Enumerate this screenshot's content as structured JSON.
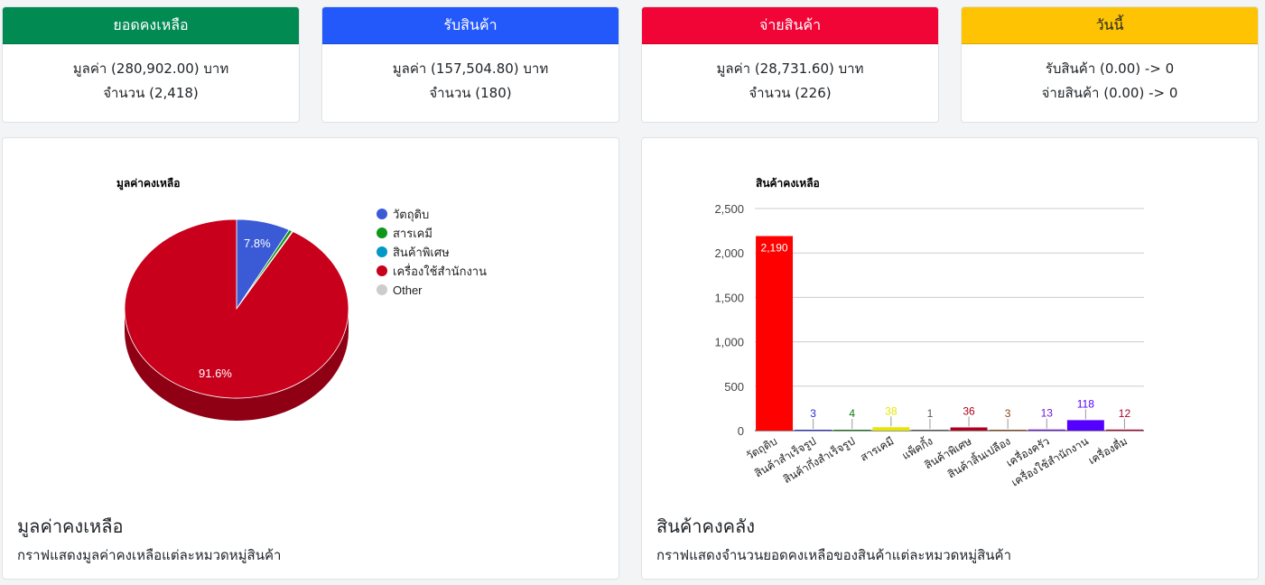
{
  "stats": [
    {
      "title": "ยอดคงเหลือ",
      "color": "#028a53",
      "title_color": "#ffffff",
      "line1": "มูลค่า (280,902.00) บาท",
      "line2": "จำนวน (2,418)"
    },
    {
      "title": "รับสินค้า",
      "color": "#2358fa",
      "title_color": "#ffffff",
      "line1": "มูลค่า (157,504.80) บาท",
      "line2": "จำนวน (180)"
    },
    {
      "title": "จ่ายสินค้า",
      "color": "#f10537",
      "title_color": "#ffffff",
      "line1": "มูลค่า (28,731.60) บาท",
      "line2": "จำนวน (226)"
    },
    {
      "title": "วันนี้",
      "color": "#fec403",
      "title_color": "#212529",
      "line1": "รับสินค้า (0.00) -> 0",
      "line2": "จ่ายสินค้า (0.00) -> 0"
    }
  ],
  "pie_panel": {
    "heading": "มูลค่าคงเหลือ",
    "description": "กราฟแสดงมูลค่าคงเหลือแต่ละหมวดหมู่สินค้า"
  },
  "bar_panel": {
    "heading": "สินค้าคงคลัง",
    "description": "กราฟแสดงจำนวนยอดคงเหลือของสินค้าแต่ละหมวดหมู่สินค้า"
  },
  "chart_data": [
    {
      "type": "pie",
      "title": "มูลค่าคงเหลือ",
      "legend_position": "right",
      "slices": [
        {
          "label": "วัตถุดิบ",
          "value": 7.8,
          "color": "#3b5bd6"
        },
        {
          "label": "สารเคมี",
          "value": 0.5,
          "color": "#109618"
        },
        {
          "label": "สินค้าพิเศษ",
          "value": 0.1,
          "color": "#0099c6"
        },
        {
          "label": "เครื่องใช้สำนักงาน",
          "value": 91.6,
          "color": "#c8001c"
        },
        {
          "label": "Other",
          "value": 0.0,
          "color": "#cccccc"
        }
      ],
      "data_labels": [
        "7.8%",
        "91.6%"
      ]
    },
    {
      "type": "bar",
      "title": "สินค้าคงเหลือ",
      "ylim": [
        0,
        2500
      ],
      "yticks": [
        "0",
        "500",
        "1,000",
        "1,500",
        "2,000",
        "2,500"
      ],
      "grid": true,
      "categories": [
        "วัตถุดิบ",
        "สินค้าสำเร็จรูป",
        "สินค้ากึ่งสำเร็จรูป",
        "สารเคมี",
        "แพ็คกิ้ง",
        "สินค้าพิเศษ",
        "สินค้าสิ้นเปลือง",
        "เครื่องครัว",
        "เครื่องใช้สำนักงาน",
        "เครื่องดื่ม"
      ],
      "values": [
        2190,
        3,
        4,
        38,
        1,
        36,
        3,
        13,
        118,
        12
      ],
      "value_labels": [
        "2,190",
        "3",
        "4",
        "38",
        "1",
        "36",
        "3",
        "13",
        "118",
        "12"
      ],
      "colors": [
        "#ff0000",
        "#2a2ad6",
        "#107a10",
        "#e6e600",
        "#555555",
        "#b00020",
        "#8b4513",
        "#6a1ad6",
        "#5500ff",
        "#b0002b"
      ]
    }
  ]
}
